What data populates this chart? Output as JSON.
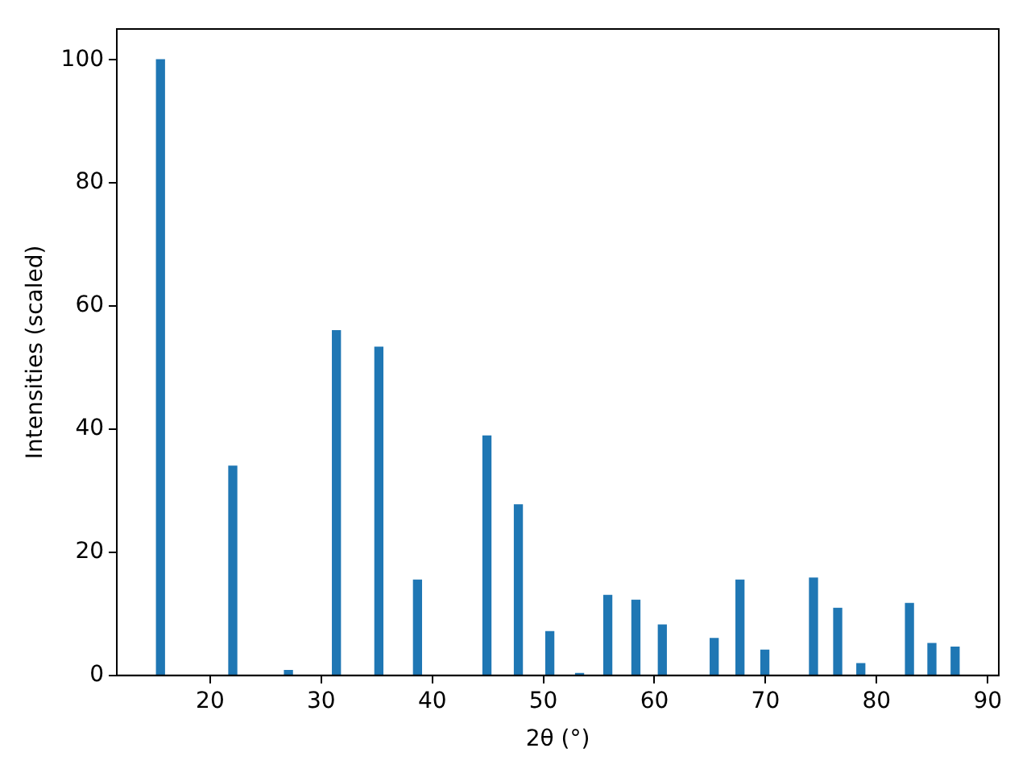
{
  "chart_data": {
    "type": "bar",
    "xlabel": "2θ (°)",
    "ylabel": "Intensities (scaled)",
    "x": [
      15.53,
      22.04,
      27.05,
      31.37,
      35.19,
      38.67,
      44.92,
      47.75,
      50.58,
      53.26,
      55.8,
      58.33,
      60.71,
      65.38,
      67.7,
      69.94,
      74.32,
      76.5,
      78.58,
      82.96,
      84.98,
      87.07
    ],
    "values": [
      100,
      34.0,
      0.8,
      56.0,
      53.3,
      15.5,
      38.9,
      27.7,
      7.1,
      0.3,
      13.0,
      12.2,
      8.2,
      6.0,
      15.5,
      4.1,
      15.8,
      10.9,
      1.9,
      11.7,
      5.2,
      4.6
    ],
    "color": "#1f77b4",
    "xlim": [
      11.6,
      91.0
    ],
    "xticks": [
      20,
      30,
      40,
      50,
      60,
      70,
      80,
      90
    ],
    "ylim": [
      0,
      105
    ],
    "yticks": [
      0,
      20,
      40,
      60,
      80,
      100
    ],
    "grid": false,
    "legend": false
  }
}
